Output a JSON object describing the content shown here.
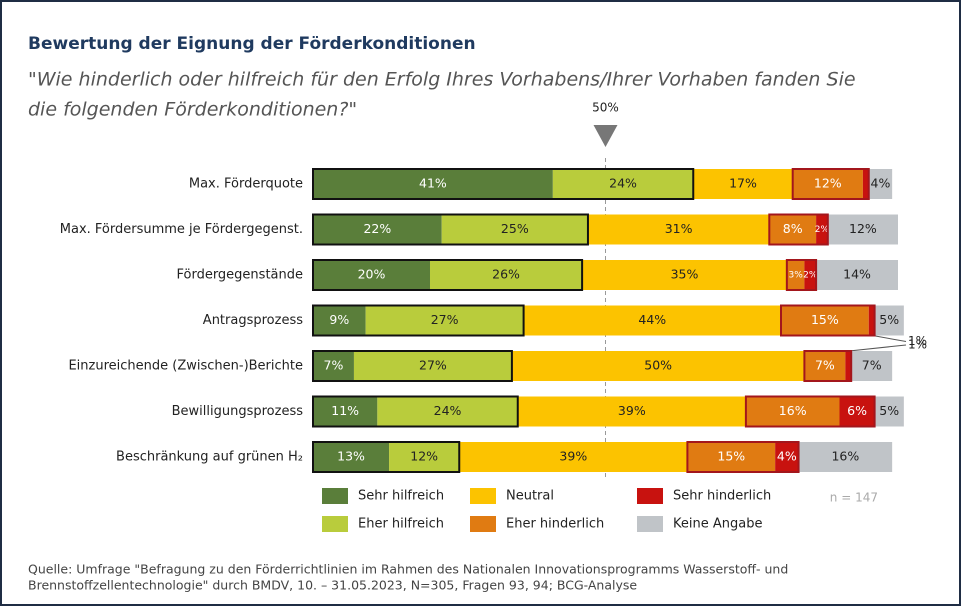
{
  "chart_data": {
    "type": "stacked-bar-horizontal",
    "title": "Bewertung der Eignung der Förderkonditionen",
    "subtitle": [
      "\"Wie hinderlich oder hilfreich für den Erfolg Ihres Vorhabens/Ihrer Vorhaben fanden Sie",
      "die folgenden Förderkonditionen?\""
    ],
    "reference": {
      "value": 50,
      "label": "50%"
    },
    "categories": [
      "Max. Förderquote",
      "Max. Fördersumme je Fördergegenst.",
      "Fördergegenstände",
      "Antragsprozess",
      "Einzureichende (Zwischen-)Berichte",
      "Bewilligungsprozess",
      "Beschränkung auf grünen H₂"
    ],
    "xlim": [
      0,
      100
    ],
    "series": [
      {
        "name": "Sehr hilfreich",
        "color": "#5a7e3a",
        "values": [
          41,
          22,
          20,
          9,
          7,
          11,
          13
        ],
        "value_labels": [
          "41%",
          "22%",
          "20%",
          "9%",
          "7%",
          "11%",
          "13%"
        ]
      },
      {
        "name": "Eher hilfreich",
        "color": "#b9cc3c",
        "values": [
          24,
          25,
          26,
          27,
          27,
          24,
          12
        ],
        "value_labels": [
          "24%",
          "25%",
          "26%",
          "27%",
          "27%",
          "24%",
          "12%"
        ]
      },
      {
        "name": "Neutral",
        "color": "#fcc300",
        "values": [
          17,
          31,
          35,
          44,
          50,
          39,
          39
        ],
        "value_labels": [
          "17%",
          "31%",
          "35%",
          "44%",
          "50%",
          "39%",
          "39%"
        ]
      },
      {
        "name": "Eher hinderlich",
        "color": "#e07b12",
        "values": [
          12,
          8,
          3,
          15,
          7,
          16,
          15
        ],
        "value_labels": [
          "12%",
          "8%",
          "3%",
          "15%",
          "7%",
          "16%",
          "15%"
        ]
      },
      {
        "name": "Sehr hinderlich",
        "color": "#c8120f",
        "values": [
          1,
          2,
          2,
          1,
          1,
          6,
          4
        ],
        "value_labels": [
          null,
          "2%",
          "2%",
          "1%",
          "1%",
          "6%",
          "4%"
        ]
      },
      {
        "name": "Keine Angabe",
        "color": "#c0c4c8",
        "values": [
          4,
          12,
          14,
          5,
          7,
          5,
          16
        ],
        "value_labels": [
          "4%",
          "12%",
          "14%",
          "5%",
          "7%",
          "5%",
          "16%"
        ]
      }
    ],
    "note": "n = 147",
    "source": [
      "Quelle: Umfrage \"Befragung zu den Förderrichtlinien im Rahmen des Nationalen Innovationsprogramms Wasserstoff- und",
      "Brennstoffzellentechnologie\" durch BMDV, 10. – 31.05.2023, N=305, Fragen 93, 94; BCG-Analyse"
    ]
  }
}
